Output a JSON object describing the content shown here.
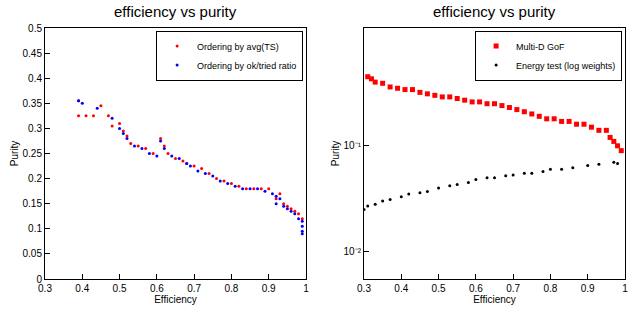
{
  "chart_data": [
    {
      "type": "scatter",
      "title": "efficiency vs purity",
      "x_label": "Efficiency",
      "y_label": "Purity",
      "xlim": [
        0.3,
        1
      ],
      "xticks": [
        0.3,
        0.4,
        0.5,
        0.6,
        0.7,
        0.8,
        0.9,
        1
      ],
      "ylim": [
        0,
        0.5
      ],
      "yticks": [
        0,
        0.05,
        0.1,
        0.15,
        0.2,
        0.25,
        0.3,
        0.35,
        0.4,
        0.45,
        0.5
      ],
      "grid": false,
      "legend": "top right",
      "series": [
        {
          "name": "Ordering by avg(TS)",
          "color": "#ff0000",
          "marker": "circle",
          "x": [
            0.39,
            0.39,
            0.41,
            0.43,
            0.45,
            0.47,
            0.48,
            0.5,
            0.51,
            0.52,
            0.53,
            0.55,
            0.57,
            0.59,
            0.61,
            0.62,
            0.63,
            0.65,
            0.67,
            0.68,
            0.7,
            0.72,
            0.74,
            0.76,
            0.78,
            0.8,
            0.82,
            0.84,
            0.86,
            0.88,
            0.9,
            0.92,
            0.93,
            0.94,
            0.95,
            0.96,
            0.97,
            0.98,
            0.99
          ],
          "values": [
            0.325,
            0.355,
            0.325,
            0.325,
            0.345,
            0.325,
            0.305,
            0.31,
            0.295,
            0.285,
            0.27,
            0.265,
            0.26,
            0.25,
            0.28,
            0.265,
            0.25,
            0.24,
            0.235,
            0.23,
            0.225,
            0.22,
            0.21,
            0.2,
            0.195,
            0.19,
            0.185,
            0.18,
            0.18,
            0.18,
            0.18,
            0.16,
            0.17,
            0.15,
            0.145,
            0.14,
            0.135,
            0.13,
            0.12
          ]
        },
        {
          "name": "Ordering by ok/tried ratio",
          "color": "#0000ff",
          "marker": "circle",
          "x": [
            0.39,
            0.4,
            0.44,
            0.48,
            0.5,
            0.51,
            0.52,
            0.54,
            0.56,
            0.58,
            0.6,
            0.61,
            0.62,
            0.64,
            0.66,
            0.68,
            0.69,
            0.71,
            0.73,
            0.75,
            0.77,
            0.79,
            0.81,
            0.83,
            0.85,
            0.87,
            0.89,
            0.91,
            0.92,
            0.92,
            0.93,
            0.94,
            0.95,
            0.96,
            0.97,
            0.98,
            0.99,
            0.99,
            0.99,
            0.99
          ],
          "values": [
            0.355,
            0.35,
            0.34,
            0.32,
            0.3,
            0.29,
            0.28,
            0.265,
            0.26,
            0.25,
            0.245,
            0.275,
            0.26,
            0.245,
            0.24,
            0.23,
            0.225,
            0.215,
            0.21,
            0.205,
            0.195,
            0.19,
            0.185,
            0.18,
            0.18,
            0.18,
            0.175,
            0.17,
            0.165,
            0.15,
            0.16,
            0.145,
            0.14,
            0.135,
            0.13,
            0.12,
            0.115,
            0.105,
            0.095,
            0.09
          ]
        }
      ]
    },
    {
      "type": "scatter",
      "title": "efficiency vs purity",
      "x_label": "Efficiency",
      "y_label": "Purity",
      "xlim": [
        0.3,
        1
      ],
      "xticks": [
        0.3,
        0.4,
        0.5,
        0.6,
        0.7,
        0.8,
        0.9,
        1
      ],
      "ylim": [
        0.0055,
        1.3
      ],
      "yticks": [
        {
          "value": 0.01,
          "label": "10⁻²"
        },
        {
          "value": 0.1,
          "label": "10⁻¹"
        }
      ],
      "log": "y",
      "grid": false,
      "legend": "top right",
      "series": [
        {
          "name": "Multi-D GoF",
          "color": "#ff0000",
          "marker": "square",
          "x": [
            0.31,
            0.32,
            0.33,
            0.35,
            0.37,
            0.39,
            0.41,
            0.43,
            0.45,
            0.47,
            0.49,
            0.51,
            0.53,
            0.55,
            0.57,
            0.59,
            0.61,
            0.63,
            0.65,
            0.67,
            0.69,
            0.71,
            0.73,
            0.75,
            0.77,
            0.79,
            0.81,
            0.83,
            0.85,
            0.87,
            0.89,
            0.91,
            0.93,
            0.95,
            0.96,
            0.97,
            0.98,
            0.99
          ],
          "values": [
            0.45,
            0.43,
            0.4,
            0.39,
            0.36,
            0.35,
            0.34,
            0.34,
            0.32,
            0.31,
            0.3,
            0.29,
            0.29,
            0.28,
            0.27,
            0.26,
            0.26,
            0.25,
            0.25,
            0.24,
            0.23,
            0.22,
            0.21,
            0.2,
            0.19,
            0.18,
            0.18,
            0.17,
            0.17,
            0.16,
            0.16,
            0.15,
            0.14,
            0.14,
            0.12,
            0.11,
            0.1,
            0.09
          ]
        },
        {
          "name": "Energy test (log weights)",
          "color": "#000000",
          "marker": "circle",
          "x": [
            0.3,
            0.31,
            0.33,
            0.35,
            0.37,
            0.4,
            0.42,
            0.45,
            0.47,
            0.5,
            0.53,
            0.55,
            0.58,
            0.6,
            0.63,
            0.65,
            0.68,
            0.7,
            0.73,
            0.75,
            0.78,
            0.8,
            0.83,
            0.86,
            0.9,
            0.93,
            0.97,
            0.98
          ],
          "values": [
            0.025,
            0.027,
            0.028,
            0.03,
            0.031,
            0.033,
            0.035,
            0.036,
            0.037,
            0.04,
            0.042,
            0.043,
            0.045,
            0.048,
            0.05,
            0.05,
            0.052,
            0.053,
            0.055,
            0.055,
            0.057,
            0.06,
            0.06,
            0.062,
            0.065,
            0.067,
            0.07,
            0.068
          ]
        }
      ]
    }
  ]
}
